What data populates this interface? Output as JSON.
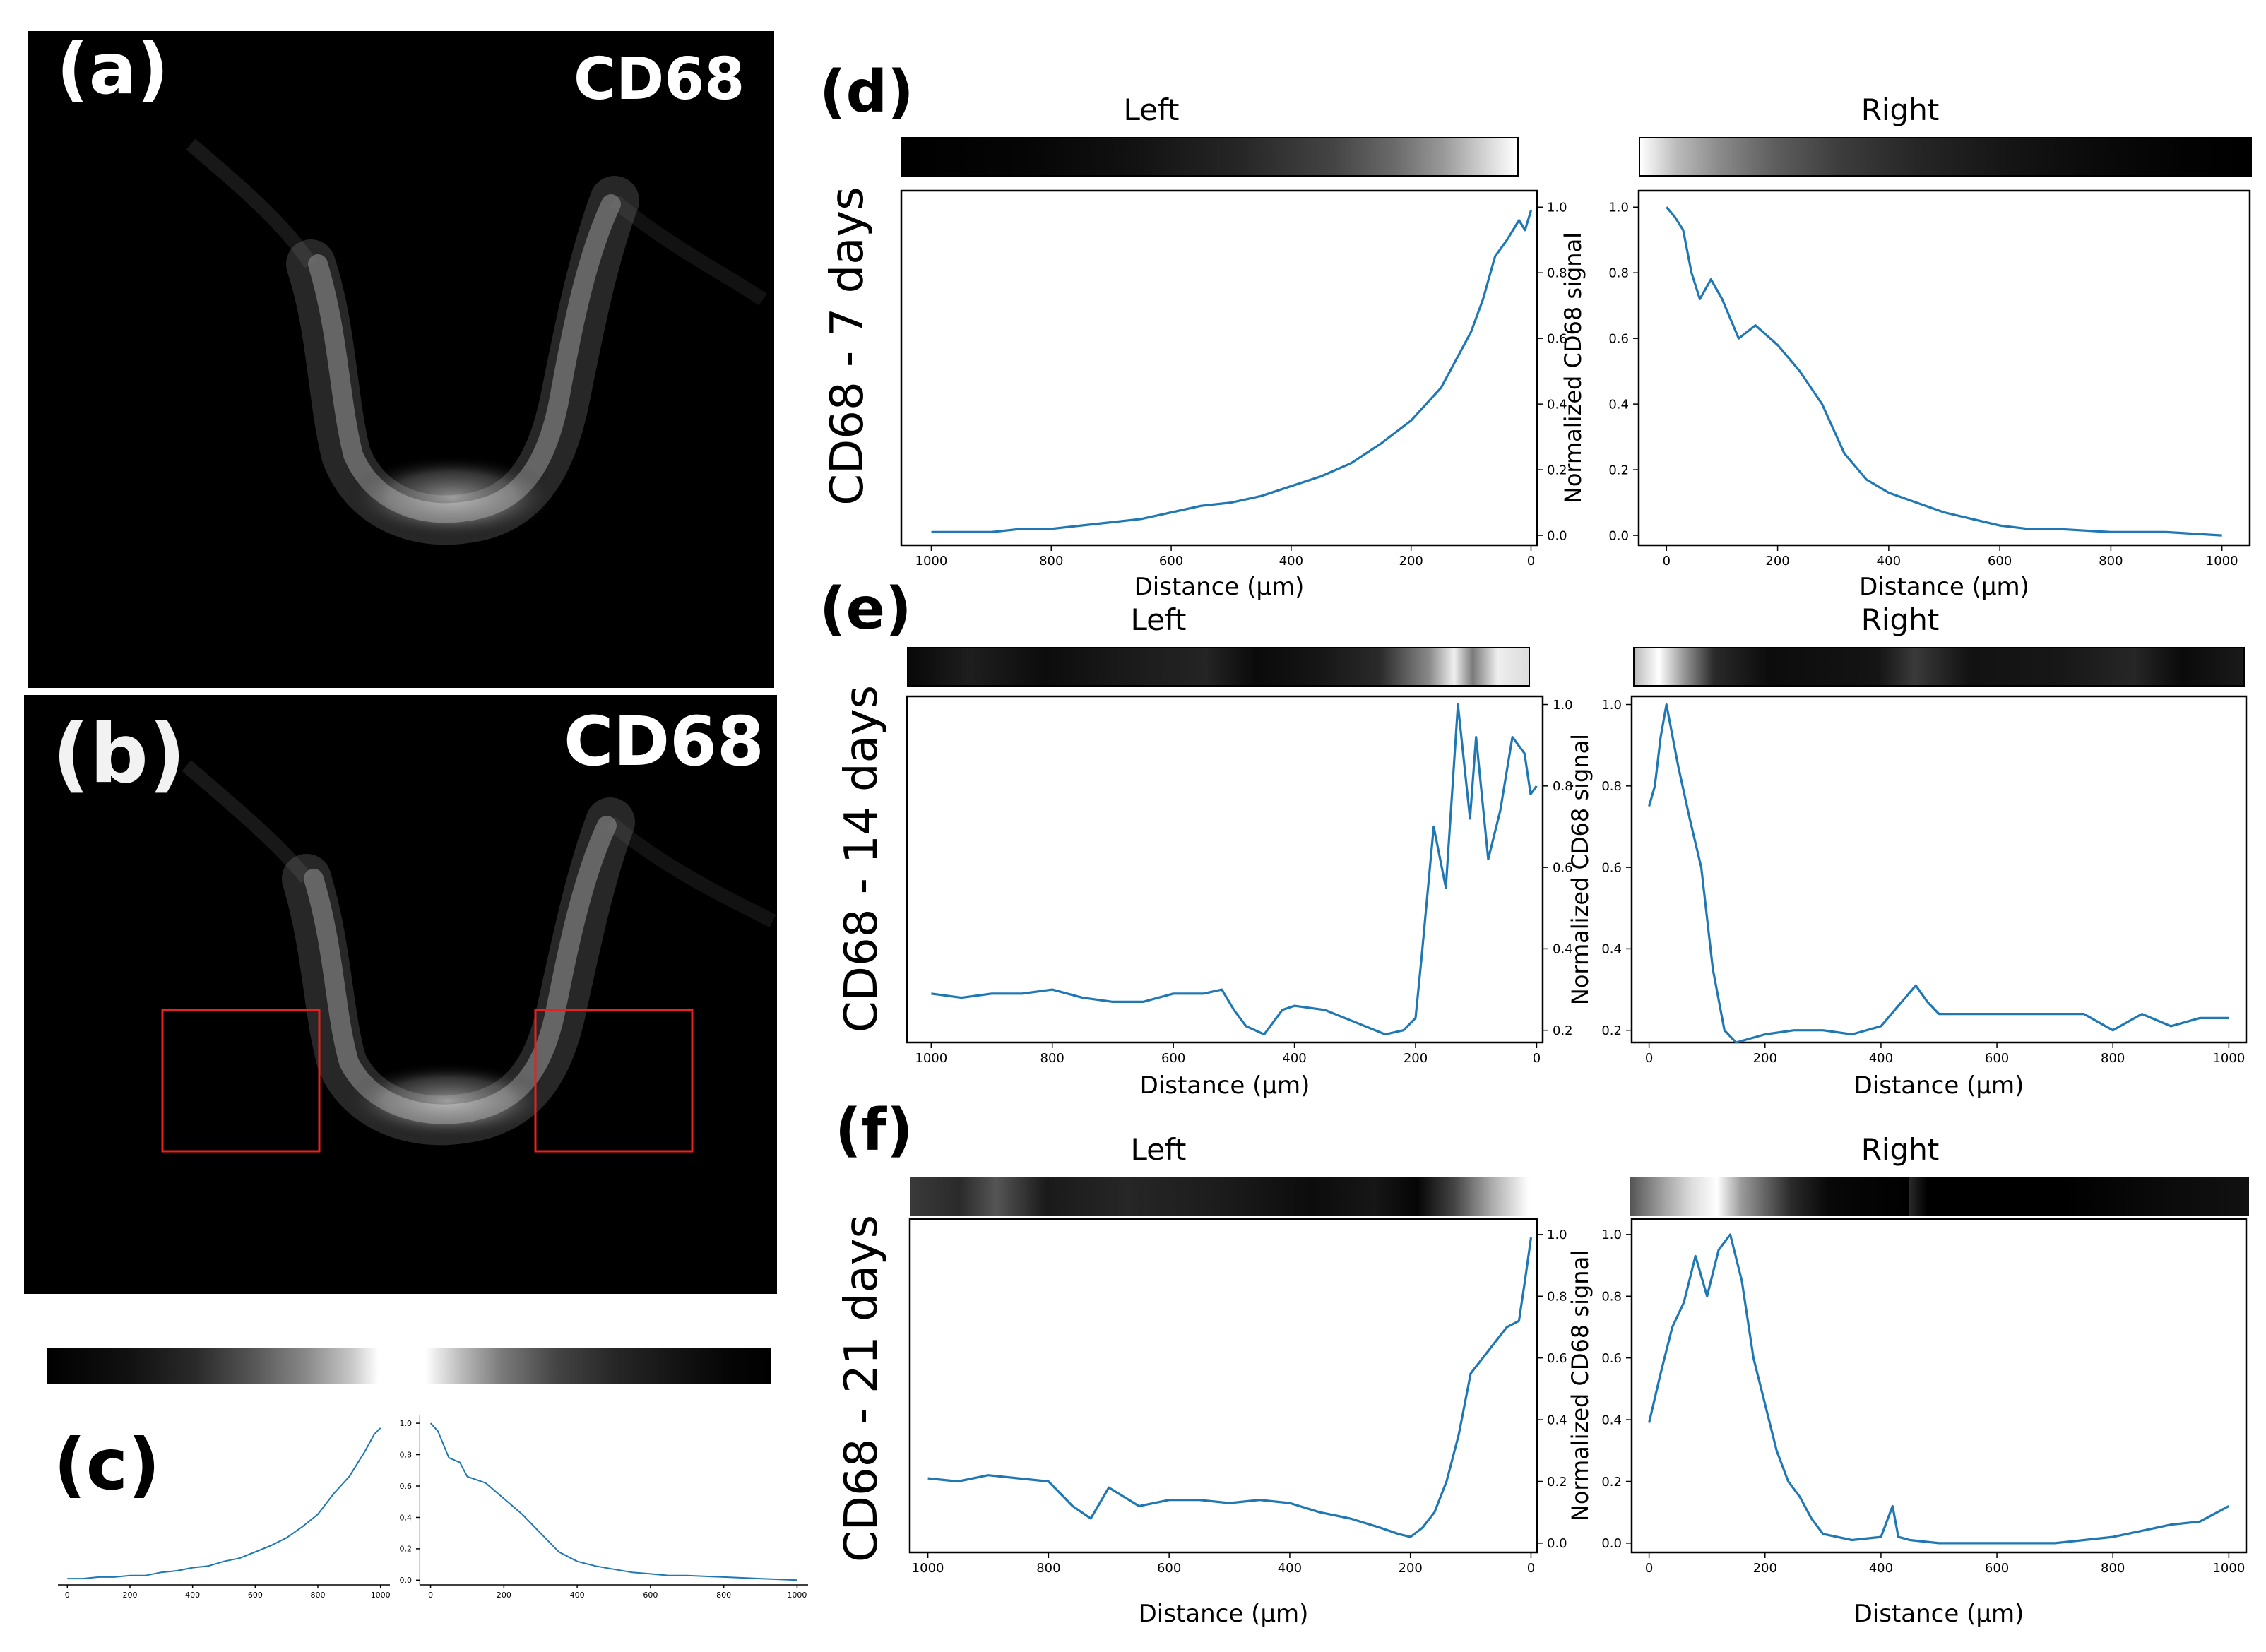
{
  "panel_a": {
    "letter": "(a)",
    "marker": "CD68"
  },
  "panel_b": {
    "letter": "(b)",
    "marker": "CD68"
  },
  "panel_c": {
    "letter": "(c)"
  },
  "panel_d": {
    "letter": "(d)",
    "row_label": "CD68 - 7 days"
  },
  "panel_e": {
    "letter": "(e)",
    "row_label": "CD68 - 14 days"
  },
  "panel_f": {
    "letter": "(f)",
    "row_label": "CD68 - 21 days"
  },
  "colors": {
    "line": "#1f77b4",
    "roi_box": "#e8201f",
    "background_image": "#000000"
  },
  "chart_data": [
    {
      "id": "c_left",
      "type": "line",
      "title": "",
      "xlabel": "",
      "ylabel": "",
      "xlim": [
        -30,
        1030
      ],
      "ylim": [
        -0.03,
        1.05
      ],
      "xticks": [
        0,
        200,
        400,
        600,
        800,
        1000
      ],
      "yticks": [],
      "x": [
        0,
        50,
        100,
        150,
        200,
        250,
        300,
        350,
        400,
        450,
        500,
        550,
        600,
        650,
        700,
        750,
        800,
        850,
        900,
        950,
        980,
        1000
      ],
      "y": [
        0.01,
        0.01,
        0.02,
        0.02,
        0.03,
        0.03,
        0.05,
        0.06,
        0.08,
        0.09,
        0.12,
        0.14,
        0.18,
        0.22,
        0.27,
        0.34,
        0.42,
        0.55,
        0.66,
        0.82,
        0.93,
        0.97
      ]
    },
    {
      "id": "c_right",
      "type": "line",
      "title": "",
      "xlabel": "",
      "ylabel": "",
      "xlim": [
        -30,
        1030
      ],
      "ylim": [
        -0.03,
        1.05
      ],
      "xticks": [
        0,
        200,
        400,
        600,
        800,
        1000
      ],
      "yticks": [
        0.0,
        0.2,
        0.4,
        0.6,
        0.8,
        1.0
      ],
      "x": [
        0,
        20,
        50,
        80,
        100,
        150,
        200,
        250,
        300,
        350,
        400,
        450,
        500,
        550,
        600,
        650,
        700,
        800,
        900,
        1000
      ],
      "y": [
        1.0,
        0.95,
        0.78,
        0.75,
        0.66,
        0.62,
        0.52,
        0.42,
        0.3,
        0.18,
        0.12,
        0.09,
        0.07,
        0.05,
        0.04,
        0.03,
        0.03,
        0.02,
        0.01,
        0.0
      ]
    },
    {
      "id": "d_left",
      "type": "line",
      "title": "Left",
      "xlabel": "Distance (μm)",
      "ylabel": "Normalized CD68 signal",
      "xlim": [
        1050,
        -10
      ],
      "ylim": [
        -0.03,
        1.05
      ],
      "xticks": [
        1000,
        800,
        600,
        400,
        200,
        0
      ],
      "yticks": [
        0.0,
        0.2,
        0.4,
        0.6,
        0.8,
        1.0
      ],
      "x": [
        1000,
        950,
        900,
        850,
        800,
        750,
        700,
        650,
        600,
        550,
        500,
        450,
        400,
        350,
        300,
        250,
        200,
        150,
        100,
        80,
        60,
        40,
        20,
        10,
        0
      ],
      "y": [
        0.01,
        0.01,
        0.01,
        0.02,
        0.02,
        0.03,
        0.04,
        0.05,
        0.07,
        0.09,
        0.1,
        0.12,
        0.15,
        0.18,
        0.22,
        0.28,
        0.35,
        0.45,
        0.62,
        0.72,
        0.85,
        0.9,
        0.96,
        0.93,
        0.99
      ]
    },
    {
      "id": "d_right",
      "type": "line",
      "title": "Right",
      "xlabel": "Distance (μm)",
      "ylabel": "",
      "xlim": [
        -50,
        1050
      ],
      "ylim": [
        -0.03,
        1.05
      ],
      "xticks": [
        0,
        200,
        400,
        600,
        800,
        1000
      ],
      "yticks": [
        0.0,
        0.2,
        0.4,
        0.6,
        0.8,
        1.0
      ],
      "x": [
        0,
        15,
        30,
        45,
        60,
        80,
        100,
        130,
        160,
        200,
        240,
        280,
        320,
        360,
        400,
        450,
        500,
        550,
        600,
        650,
        700,
        800,
        900,
        1000
      ],
      "y": [
        1.0,
        0.97,
        0.93,
        0.8,
        0.72,
        0.78,
        0.72,
        0.6,
        0.64,
        0.58,
        0.5,
        0.4,
        0.25,
        0.17,
        0.13,
        0.1,
        0.07,
        0.05,
        0.03,
        0.02,
        0.02,
        0.01,
        0.01,
        0.0
      ]
    },
    {
      "id": "e_left",
      "type": "line",
      "title": "Left",
      "xlabel": "Distance (μm)",
      "ylabel": "Normalized CD68 signal",
      "xlim": [
        1040,
        -10
      ],
      "ylim": [
        0.17,
        1.02
      ],
      "xticks": [
        1000,
        800,
        600,
        400,
        200,
        0
      ],
      "yticks": [
        0.2,
        0.4,
        0.6,
        0.8,
        1.0
      ],
      "x": [
        1000,
        950,
        900,
        850,
        800,
        750,
        700,
        650,
        600,
        550,
        520,
        500,
        480,
        450,
        420,
        400,
        350,
        300,
        250,
        220,
        200,
        190,
        170,
        150,
        130,
        110,
        100,
        80,
        60,
        40,
        20,
        10,
        0
      ],
      "y": [
        0.29,
        0.28,
        0.29,
        0.29,
        0.3,
        0.28,
        0.27,
        0.27,
        0.29,
        0.29,
        0.3,
        0.25,
        0.21,
        0.19,
        0.25,
        0.26,
        0.25,
        0.22,
        0.19,
        0.2,
        0.23,
        0.38,
        0.7,
        0.55,
        1.0,
        0.72,
        0.92,
        0.62,
        0.74,
        0.92,
        0.88,
        0.78,
        0.8
      ]
    },
    {
      "id": "e_right",
      "type": "line",
      "title": "Right",
      "xlabel": "Distance (μm)",
      "ylabel": "",
      "xlim": [
        -30,
        1030
      ],
      "ylim": [
        0.17,
        1.02
      ],
      "xticks": [
        0,
        200,
        400,
        600,
        800,
        1000
      ],
      "yticks": [
        0.2,
        0.4,
        0.6,
        0.8,
        1.0
      ],
      "x": [
        0,
        10,
        20,
        30,
        50,
        70,
        90,
        110,
        130,
        150,
        200,
        250,
        300,
        350,
        400,
        430,
        460,
        480,
        500,
        550,
        600,
        700,
        750,
        800,
        850,
        900,
        950,
        1000
      ],
      "y": [
        0.75,
        0.8,
        0.92,
        1.0,
        0.85,
        0.72,
        0.6,
        0.35,
        0.2,
        0.17,
        0.19,
        0.2,
        0.2,
        0.19,
        0.21,
        0.26,
        0.31,
        0.27,
        0.24,
        0.24,
        0.24,
        0.24,
        0.24,
        0.2,
        0.24,
        0.21,
        0.23,
        0.23
      ]
    },
    {
      "id": "f_left",
      "type": "line",
      "title": "Left",
      "xlabel": "Distance (μm)",
      "ylabel": "Normalized CD68 signal",
      "xlim": [
        1030,
        -10
      ],
      "ylim": [
        -0.03,
        1.05
      ],
      "xticks": [
        1000,
        800,
        600,
        400,
        200,
        0
      ],
      "yticks": [
        0.0,
        0.2,
        0.4,
        0.6,
        0.8,
        1.0
      ],
      "x": [
        1000,
        950,
        900,
        850,
        800,
        760,
        730,
        700,
        650,
        600,
        550,
        500,
        450,
        400,
        350,
        300,
        250,
        220,
        200,
        180,
        160,
        140,
        120,
        100,
        80,
        60,
        40,
        20,
        10,
        0
      ],
      "y": [
        0.21,
        0.2,
        0.22,
        0.21,
        0.2,
        0.12,
        0.08,
        0.18,
        0.12,
        0.14,
        0.14,
        0.13,
        0.14,
        0.13,
        0.1,
        0.08,
        0.05,
        0.03,
        0.02,
        0.05,
        0.1,
        0.2,
        0.35,
        0.55,
        0.6,
        0.65,
        0.7,
        0.72,
        0.85,
        0.99
      ]
    },
    {
      "id": "f_right",
      "type": "line",
      "title": "Right",
      "xlabel": "Distance (μm)",
      "ylabel": "",
      "xlim": [
        -30,
        1030
      ],
      "ylim": [
        -0.03,
        1.05
      ],
      "xticks": [
        0,
        200,
        400,
        600,
        800,
        1000
      ],
      "yticks": [
        0.0,
        0.2,
        0.4,
        0.6,
        0.8,
        1.0
      ],
      "x": [
        0,
        20,
        40,
        60,
        80,
        100,
        120,
        140,
        160,
        180,
        200,
        220,
        240,
        260,
        280,
        300,
        350,
        400,
        420,
        430,
        450,
        500,
        600,
        700,
        800,
        900,
        950,
        980,
        1000
      ],
      "y": [
        0.39,
        0.55,
        0.7,
        0.78,
        0.93,
        0.8,
        0.95,
        1.0,
        0.85,
        0.6,
        0.45,
        0.3,
        0.2,
        0.15,
        0.08,
        0.03,
        0.01,
        0.02,
        0.12,
        0.02,
        0.01,
        0.0,
        0.0,
        0.0,
        0.02,
        0.06,
        0.07,
        0.1,
        0.12
      ]
    }
  ]
}
